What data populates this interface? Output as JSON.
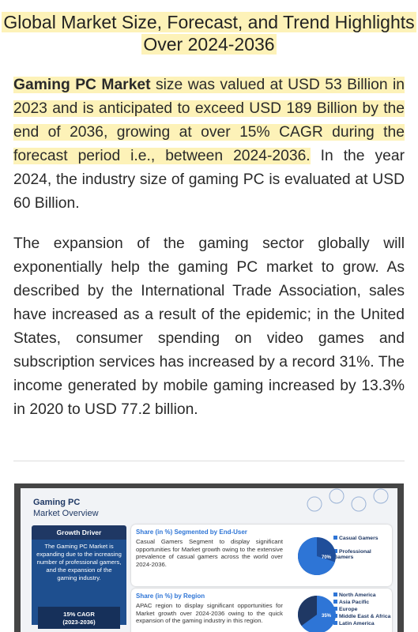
{
  "title": "Global Market Size, Forecast, and Trend Highlights Over 2024-2036",
  "paragraphs": [
    {
      "bold": "Gaming PC Market",
      "highlight": "size was valued at USD 53 Billion in 2023 and is anticipated to exceed USD 189 Billion by the end of 2036, growing at over 15% CAGR during the forecast period i.e., between 2024-2036.",
      "rest": "In the year 2024, the industry size of gaming PC is evaluated at USD 60 Billion."
    },
    {
      "text": "The expansion of the gaming sector globally will exponentially help the gaming PC market to grow. As described by the International Trade Association, sales have increased as a result of the epidemic; in the United States, consumer spending on video games and subscription services has increased by a record 31%. The income generated by mobile gaming increased by 13.3% in 2020 to USD 77.2 billion."
    }
  ],
  "infographic": {
    "heading": "Gaming PC",
    "subheading": "Market Overview",
    "growth_driver": {
      "title": "Growth Driver",
      "text": "The Gaming PC Market is expanding due to the increasing number of professional gamers, and the expansion of the gaming industry.",
      "cagr": "15% CAGR",
      "period": "(2023-2036)"
    },
    "end_user": {
      "title": "Share (in %) Segmented by End-User",
      "text": "Casual Gamers Segment to display significant opportunities for Market growth owing to the extensive prevalence of casual gamers across the world over 2024-2036.",
      "share": {
        "value": 70,
        "label": "70%"
      },
      "legend": [
        "Casual Gamers",
        "Professional Gamers"
      ]
    },
    "region": {
      "title": "Share (in %) by Region",
      "text": "APAC region to display significant opportunities for Market growth over 2024-2036 owing to the quick expansion of the gaming industry in this region.",
      "share": {
        "value": 35,
        "label": "35%"
      },
      "legend": [
        "North America",
        "Asia Pacific",
        "Europe",
        "Middle East & Africa",
        "Latin America"
      ]
    }
  }
}
